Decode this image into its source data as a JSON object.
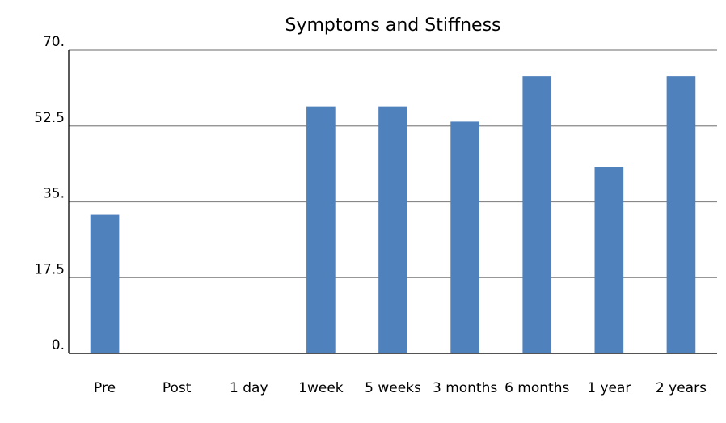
{
  "chart_data": {
    "type": "bar",
    "title": "Symptoms and Stiffness",
    "categories": [
      "Pre",
      "Post",
      "1 day",
      "1week",
      "5 weeks",
      "3 months",
      "6 months",
      "1 year",
      "2 years"
    ],
    "values": [
      32,
      null,
      null,
      57,
      57,
      53.5,
      64,
      43,
      64
    ],
    "color": "#4f81bd",
    "ylim": [
      0,
      70
    ],
    "yticks": [
      {
        "value": 0,
        "label": "0."
      },
      17.5,
      {
        "value": 35,
        "label": "35."
      },
      52.5,
      {
        "value": 70,
        "label": "70."
      }
    ],
    "grid": true
  }
}
